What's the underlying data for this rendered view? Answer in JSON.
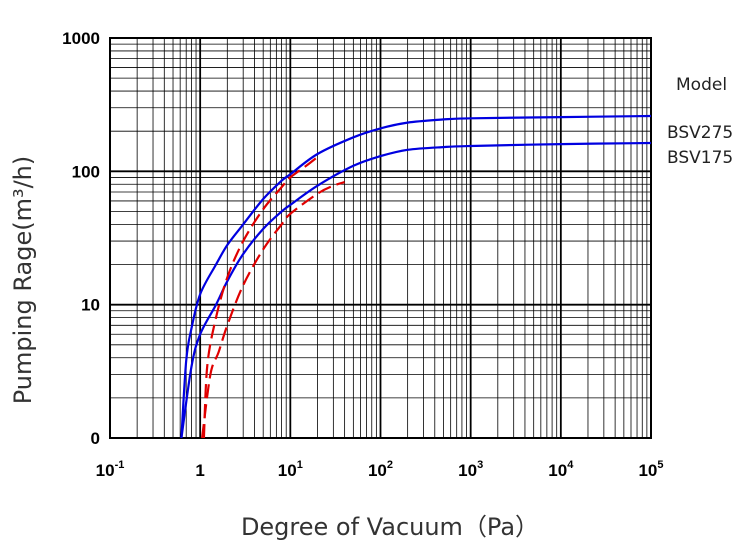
{
  "chart_data": {
    "type": "line",
    "x_scale": "log",
    "y_scale": "custom-log",
    "xlim": [
      0.1,
      100000
    ],
    "y_ticks": [
      "1000",
      "100",
      "10",
      "0"
    ],
    "x_ticks": [
      {
        "base": "10",
        "exp": "-1",
        "value": 0.1
      },
      {
        "base": "1",
        "exp": "",
        "value": 1
      },
      {
        "base": "10",
        "exp": "1",
        "value": 10
      },
      {
        "base": "10",
        "exp": "2",
        "value": 100
      },
      {
        "base": "10",
        "exp": "3",
        "value": 1000
      },
      {
        "base": "10",
        "exp": "4",
        "value": 10000
      },
      {
        "base": "10",
        "exp": "5",
        "value": 100000
      }
    ],
    "xlabel": "Degree of Vacuum（Pa）",
    "ylabel": "Pumping Rage(m³/h)",
    "legend_title": "Model",
    "grid": true,
    "series": [
      {
        "name": "BSV275",
        "color": "#0000e0",
        "style": "solid",
        "points": [
          [
            0.62,
            1
          ],
          [
            0.7,
            3.8
          ],
          [
            0.8,
            6.6
          ],
          [
            1,
            12
          ],
          [
            1.5,
            20
          ],
          [
            2,
            28
          ],
          [
            3,
            40
          ],
          [
            5,
            62
          ],
          [
            8,
            85
          ],
          [
            10,
            95
          ],
          [
            20,
            135
          ],
          [
            50,
            180
          ],
          [
            100,
            210
          ],
          [
            200,
            232
          ],
          [
            500,
            245
          ],
          [
            1000,
            250
          ],
          [
            10000,
            255
          ],
          [
            100000,
            260
          ]
        ]
      },
      {
        "name": "BSV175",
        "color": "#0000e0",
        "style": "solid",
        "points": [
          [
            0.62,
            1
          ],
          [
            0.8,
            3.4
          ],
          [
            1,
            6
          ],
          [
            1.5,
            10
          ],
          [
            2,
            15
          ],
          [
            3,
            24
          ],
          [
            5,
            37
          ],
          [
            8,
            50
          ],
          [
            10,
            56
          ],
          [
            20,
            78
          ],
          [
            50,
            110
          ],
          [
            100,
            130
          ],
          [
            200,
            145
          ],
          [
            500,
            152
          ],
          [
            1000,
            155
          ],
          [
            10000,
            160
          ],
          [
            100000,
            163
          ]
        ]
      },
      {
        "name": "",
        "color": "#e00000",
        "style": "dashed",
        "points": [
          [
            1.1,
            1
          ],
          [
            1.2,
            3.5
          ],
          [
            1.5,
            8
          ],
          [
            2,
            16
          ],
          [
            3,
            30
          ],
          [
            5,
            52
          ],
          [
            8,
            76
          ],
          [
            10,
            90
          ],
          [
            15,
            110
          ],
          [
            20,
            128
          ]
        ]
      },
      {
        "name": "",
        "color": "#e00000",
        "style": "dashed",
        "points": [
          [
            1.05,
            1
          ],
          [
            1.3,
            3
          ],
          [
            1.6,
            4.4
          ],
          [
            2,
            7
          ],
          [
            3,
            14
          ],
          [
            5,
            26
          ],
          [
            8,
            40
          ],
          [
            10,
            48
          ],
          [
            20,
            68
          ],
          [
            30,
            78
          ],
          [
            40,
            83
          ]
        ]
      }
    ]
  }
}
